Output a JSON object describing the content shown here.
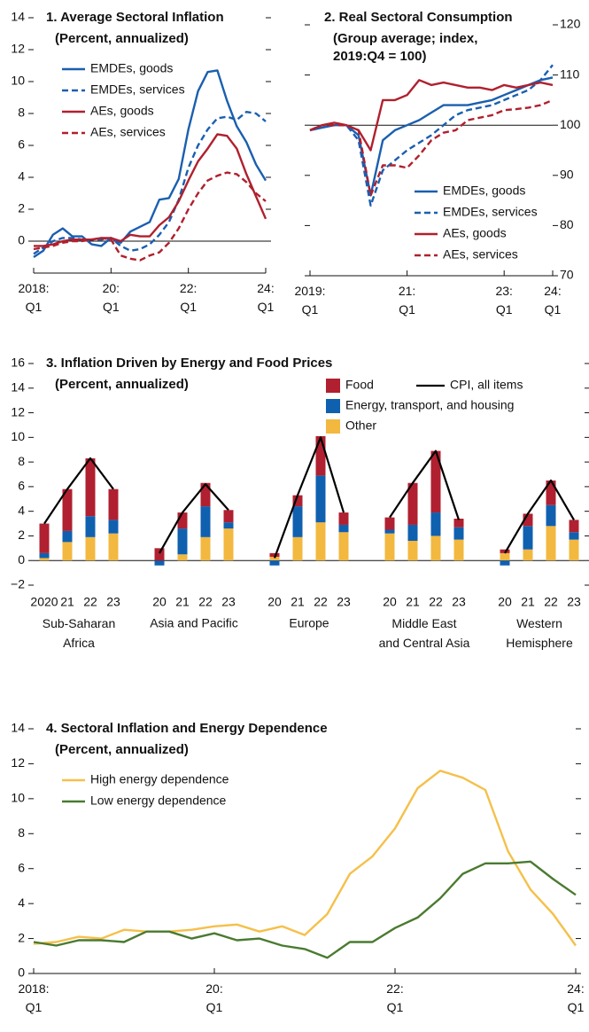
{
  "chart_data": [
    {
      "type": "line",
      "title": "1. Average Sectoral Inflation",
      "subtitle": "(Percent, annualized)",
      "categories": [
        "2018:\nQ1",
        null,
        null,
        null,
        null,
        null,
        null,
        null,
        "20:\nQ1",
        null,
        null,
        null,
        null,
        null,
        null,
        null,
        "22:\nQ1",
        null,
        null,
        null,
        null,
        null,
        null,
        null,
        "24:\nQ1"
      ],
      "series": [
        {
          "name": "EMDEs, goods",
          "color": "#1a5fb0",
          "dash": false,
          "values": [
            -1.0,
            -0.6,
            0.4,
            0.8,
            0.3,
            0.3,
            -0.2,
            -0.3,
            0.2,
            -0.1,
            0.6,
            0.9,
            1.2,
            2.6,
            2.7,
            3.9,
            7.0,
            9.4,
            10.6,
            10.7,
            8.8,
            7.2,
            6.2,
            4.8,
            3.8
          ]
        },
        {
          "name": "EMDEs, services",
          "color": "#1a5fb0",
          "dash": true,
          "values": [
            -0.8,
            -0.4,
            0.0,
            0.2,
            0.2,
            0.1,
            0.1,
            0.1,
            0.2,
            -0.3,
            -0.6,
            -0.5,
            -0.2,
            0.4,
            1.2,
            2.6,
            4.6,
            6.0,
            7.0,
            7.7,
            7.8,
            7.6,
            8.1,
            8.0,
            7.5
          ]
        },
        {
          "name": "AEs, goods",
          "color": "#b0202e",
          "dash": false,
          "values": [
            -0.3,
            -0.3,
            -0.2,
            0.0,
            0.1,
            0.1,
            0.1,
            0.2,
            0.2,
            0.0,
            0.4,
            0.3,
            0.3,
            1.0,
            1.5,
            2.5,
            3.8,
            5.0,
            5.8,
            6.7,
            6.6,
            5.8,
            4.2,
            2.8,
            1.4
          ]
        },
        {
          "name": "AEs, services",
          "color": "#b0202e",
          "dash": true,
          "values": [
            -0.5,
            -0.4,
            -0.3,
            -0.1,
            0.0,
            0.0,
            0.1,
            0.2,
            0.1,
            -0.9,
            -1.1,
            -1.2,
            -0.9,
            -0.7,
            -0.1,
            0.8,
            2.0,
            3.0,
            3.8,
            4.1,
            4.3,
            4.2,
            3.7,
            3.0,
            2.5
          ]
        }
      ],
      "ylim": [
        -2,
        14
      ],
      "yticks": [
        0,
        2,
        4,
        6,
        8,
        10,
        12,
        14
      ],
      "y_axis_side": "left",
      "reference_line": 0,
      "legend": "upper left"
    },
    {
      "type": "line",
      "title": "2. Real Sectoral Consumption",
      "subtitle": "(Group average; index,\n2019:Q4 = 100)",
      "categories": [
        "2019:\nQ1",
        null,
        null,
        null,
        null,
        null,
        null,
        null,
        "21:\nQ1",
        null,
        null,
        null,
        null,
        null,
        null,
        null,
        "23:\nQ1",
        null,
        null,
        null,
        "24:\nQ1"
      ],
      "series": [
        {
          "name": "EMDEs, goods",
          "color": "#1a5fb0",
          "dash": false,
          "values": [
            99,
            99.5,
            100,
            100,
            98,
            86,
            97,
            99,
            100,
            101,
            102.5,
            104,
            104,
            104,
            104.5,
            105,
            106,
            107,
            108,
            109,
            109.5
          ]
        },
        {
          "name": "EMDEs, services",
          "color": "#1a5fb0",
          "dash": true,
          "values": [
            99,
            100,
            100,
            100,
            97,
            84,
            91,
            93,
            95,
            96.5,
            98,
            100,
            102,
            103,
            103.5,
            104,
            105,
            106,
            107,
            109,
            112
          ]
        },
        {
          "name": "AEs, goods",
          "color": "#b0202e",
          "dash": false,
          "values": [
            99,
            100,
            100.5,
            100,
            99,
            95,
            105,
            105,
            106,
            109,
            108,
            108.5,
            108,
            107.5,
            107.5,
            107,
            108,
            107.5,
            108,
            108.5,
            108
          ]
        },
        {
          "name": "AEs, services",
          "color": "#b0202e",
          "dash": true,
          "values": [
            99,
            100,
            100,
            100,
            99,
            86,
            92,
            92,
            91.5,
            94,
            97,
            98.5,
            99,
            101,
            101.5,
            102,
            103,
            103.2,
            103.5,
            104,
            105
          ]
        }
      ],
      "ylim": [
        70,
        120
      ],
      "yticks": [
        70,
        80,
        90,
        100,
        110,
        120
      ],
      "y_axis_side": "right",
      "reference_line": 100,
      "legend": "lower right"
    },
    {
      "type": "stacked_bar",
      "title": "3. Inflation Driven by Energy and Food Prices",
      "subtitle": "(Percent, annualized)",
      "groups": [
        "Sub-Saharan\nAfrica",
        "Asia and Pacific",
        "Europe",
        "Middle East\nand Central Asia",
        "Western\nHemisphere"
      ],
      "categories": [
        "2020",
        "21",
        "22",
        "23",
        "20",
        "21",
        "22",
        "23",
        "20",
        "21",
        "22",
        "23",
        "20",
        "21",
        "22",
        "23",
        "20",
        "21",
        "22",
        "23"
      ],
      "series": [
        {
          "name": "Other",
          "color": "#f2b840",
          "values": [
            0.2,
            1.5,
            1.9,
            2.2,
            0.0,
            0.5,
            1.9,
            2.6,
            0.3,
            1.9,
            3.1,
            2.3,
            2.2,
            1.6,
            2.0,
            1.7,
            0.6,
            0.9,
            2.8,
            1.7
          ]
        },
        {
          "name": "Energy, transport, and housing",
          "color": "#1060b0",
          "values": [
            0.4,
            0.9,
            1.7,
            1.1,
            -0.4,
            2.1,
            2.5,
            0.5,
            -0.4,
            2.5,
            3.8,
            0.6,
            0.3,
            1.3,
            1.9,
            1.0,
            -0.4,
            1.9,
            1.7,
            0.6
          ]
        },
        {
          "name": "Food",
          "color": "#b02030",
          "values": [
            2.4,
            3.4,
            4.7,
            2.5,
            1.0,
            1.3,
            1.9,
            1.0,
            0.3,
            0.9,
            3.2,
            1.0,
            1.0,
            3.4,
            5.0,
            0.7,
            0.3,
            1.0,
            2.0,
            1.0
          ]
        }
      ],
      "line": {
        "name": "CPI, all items",
        "color": "#000000",
        "values": [
          3.0,
          5.8,
          8.3,
          5.8,
          0.6,
          3.9,
          6.2,
          4.1,
          0.2,
          5.3,
          10.0,
          3.9,
          3.5,
          6.3,
          8.9,
          3.3,
          0.6,
          3.8,
          6.5,
          3.3
        ]
      },
      "ylim": [
        -2,
        16
      ],
      "yticks": [
        {
          "value": -2,
          "label": "−2"
        },
        0,
        2,
        4,
        6,
        8,
        10,
        12,
        14,
        16
      ],
      "y_axis_side": "left",
      "reference_line": 0,
      "legend": "upper right"
    },
    {
      "type": "line",
      "title": "4. Sectoral Inflation and Energy Dependence",
      "subtitle": "(Percent, annualized)",
      "categories": [
        "2018:\nQ1",
        null,
        null,
        null,
        null,
        null,
        null,
        null,
        "20:\nQ1",
        null,
        null,
        null,
        null,
        null,
        null,
        null,
        "22:\nQ1",
        null,
        null,
        null,
        null,
        null,
        null,
        null,
        "24:\nQ1"
      ],
      "series": [
        {
          "name": "High energy dependence",
          "color": "#f5c04a",
          "dash": false,
          "values": [
            1.7,
            1.8,
            2.1,
            2.0,
            2.5,
            2.4,
            2.4,
            2.5,
            2.7,
            2.8,
            2.4,
            2.7,
            2.2,
            3.4,
            5.7,
            6.7,
            8.3,
            10.6,
            11.6,
            11.2,
            10.5,
            7.0,
            4.8,
            3.4,
            1.6
          ]
        },
        {
          "name": "Low energy dependence",
          "color": "#4a7a30",
          "dash": false,
          "values": [
            1.8,
            1.6,
            1.9,
            1.9,
            1.8,
            2.4,
            2.4,
            2.0,
            2.3,
            1.9,
            2.0,
            1.6,
            1.4,
            0.9,
            1.8,
            1.8,
            2.6,
            3.2,
            4.3,
            5.7,
            6.3,
            6.3,
            6.4,
            5.4,
            4.5
          ]
        }
      ],
      "ylim": [
        0,
        14
      ],
      "yticks": [
        0,
        2,
        4,
        6,
        8,
        10,
        12,
        14
      ],
      "y_axis_side": "left",
      "legend": "upper left"
    }
  ]
}
